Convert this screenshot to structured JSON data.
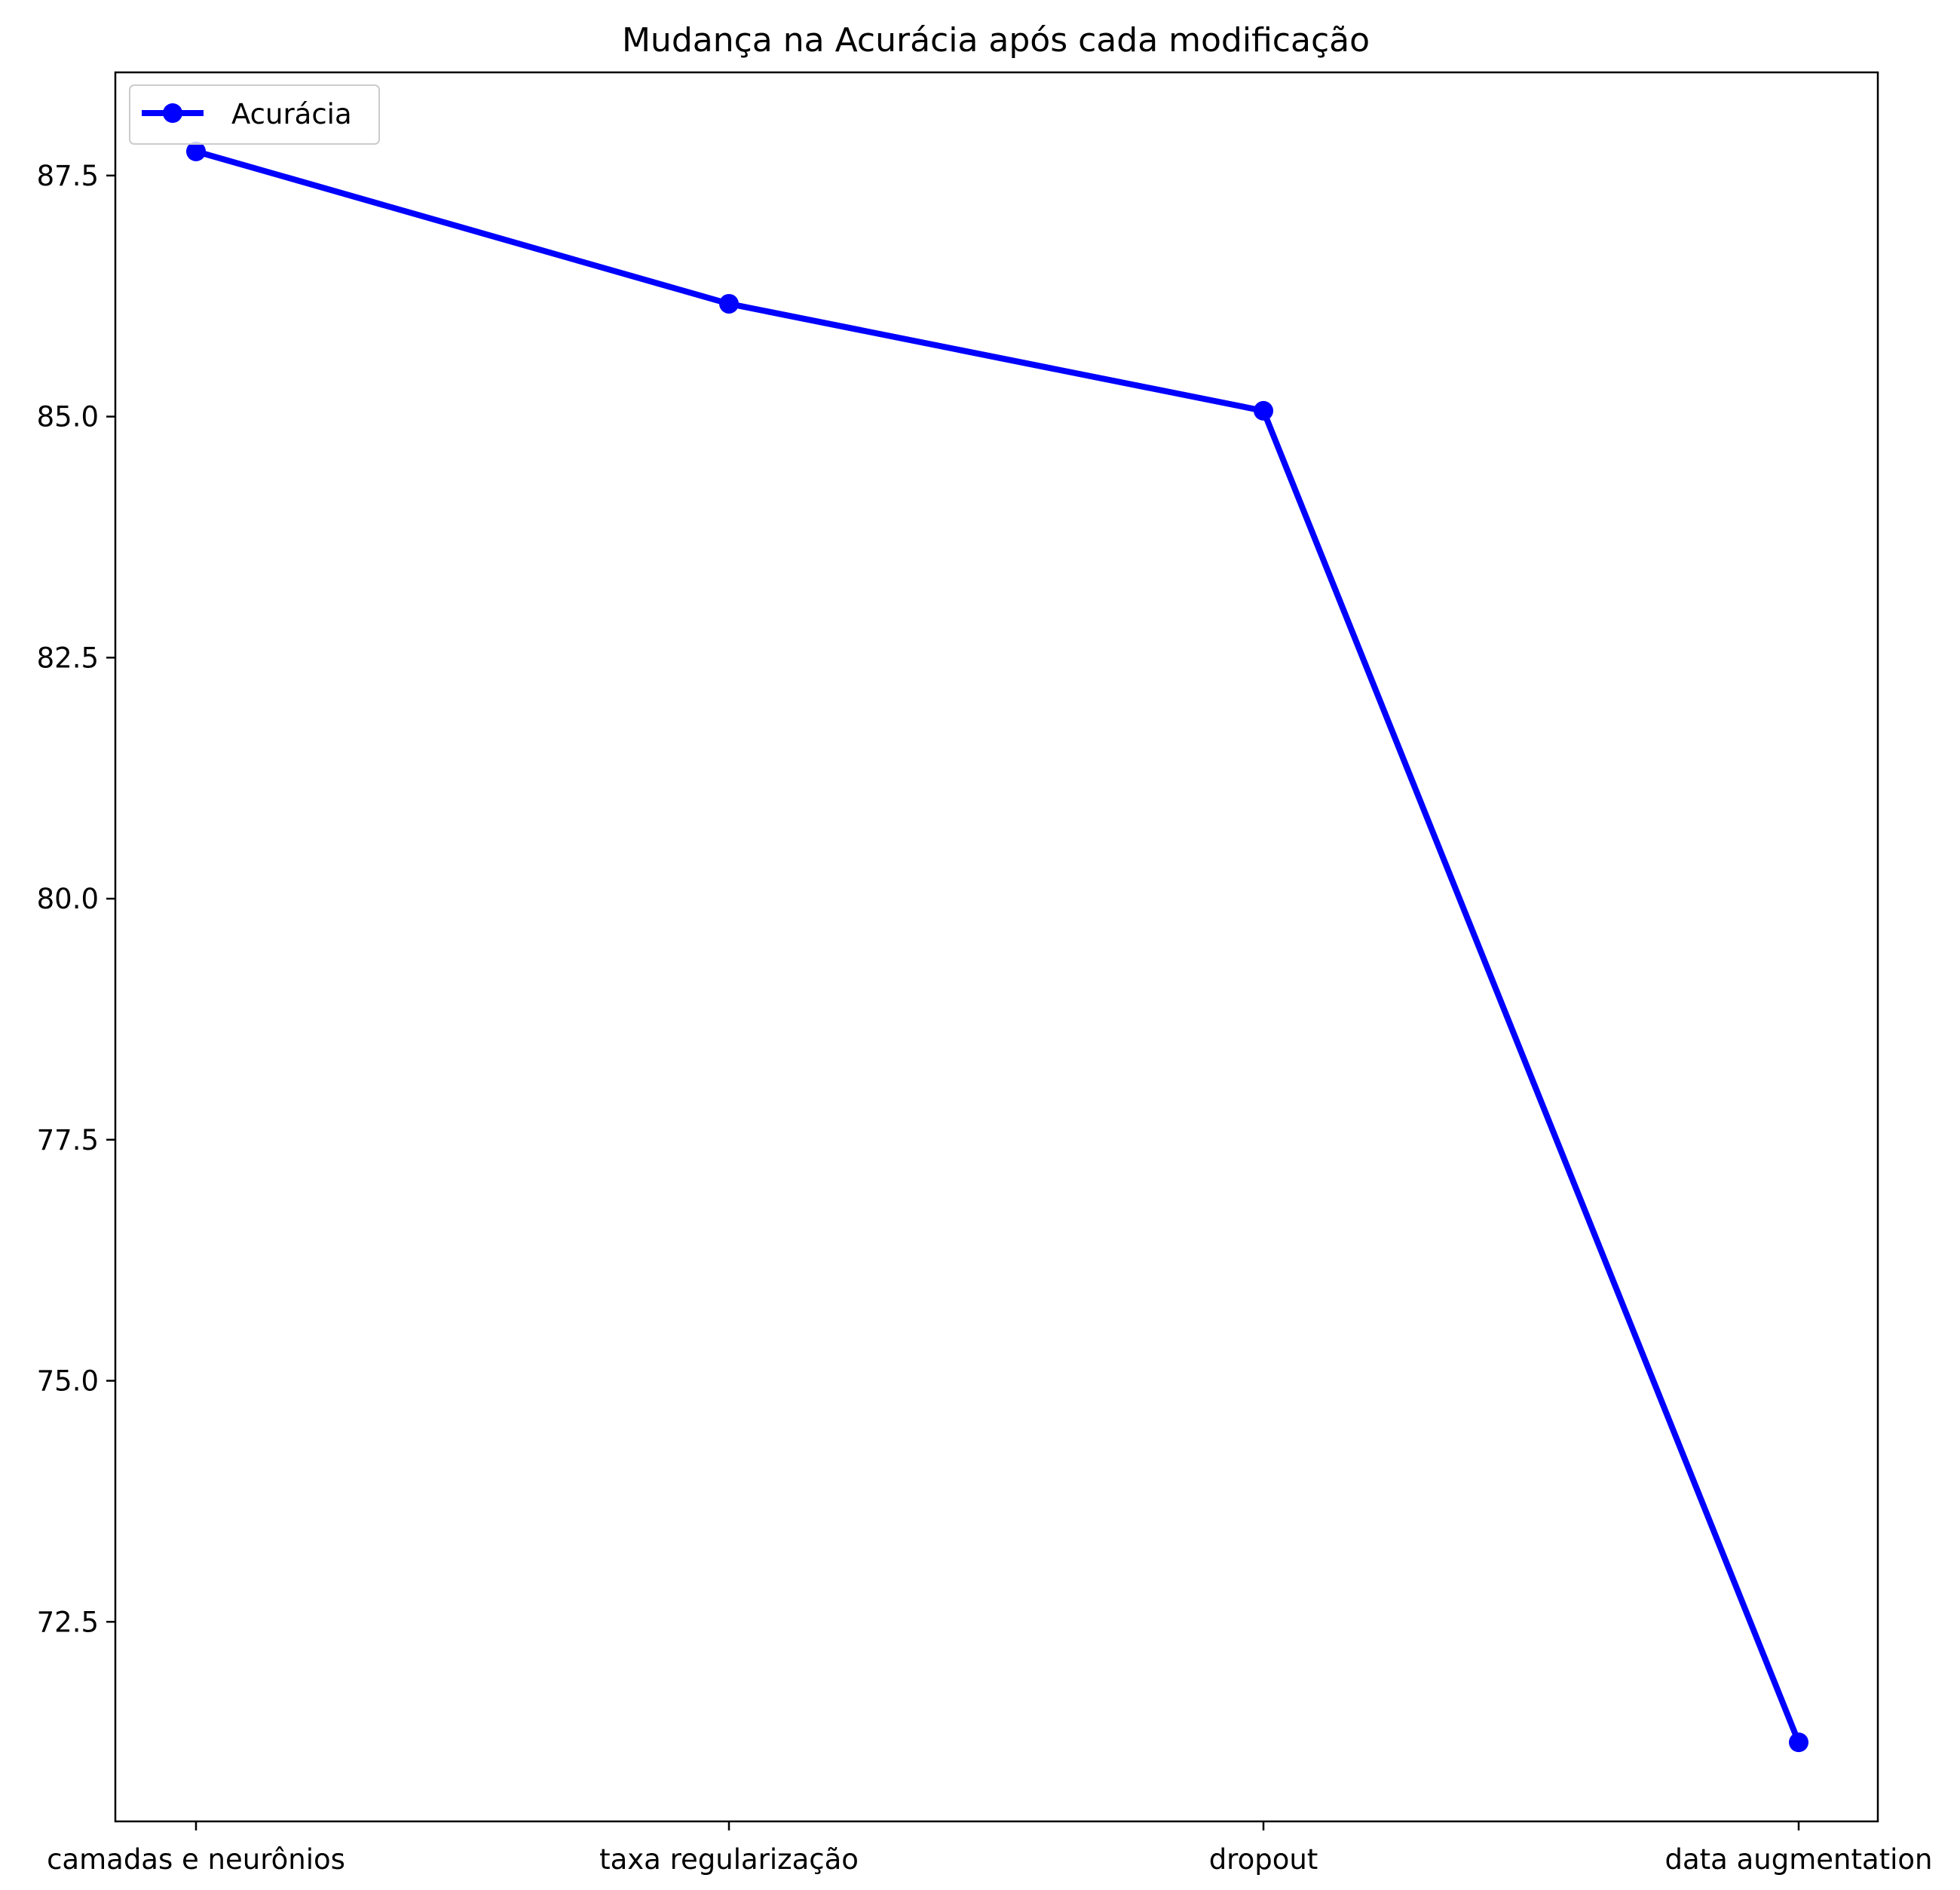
{
  "chart_data": {
    "type": "line",
    "title": "Mudança na Acurácia após cada modificação",
    "xlabel": "",
    "ylabel": "",
    "categories": [
      "camadas e neurônios",
      "taxa regularização",
      "dropout",
      "data augmentation"
    ],
    "series": [
      {
        "name": "Acurácia",
        "values": [
          87.75,
          86.17,
          85.06,
          71.25
        ],
        "color": "#0000ff",
        "marker": "circle"
      }
    ],
    "ylim": [
      70.43,
      88.57
    ],
    "yticks": [
      72.5,
      75.0,
      77.5,
      80.0,
      82.5,
      85.0,
      87.5
    ],
    "ytick_labels": [
      "72.5",
      "75.0",
      "77.5",
      "80.0",
      "82.5",
      "85.0",
      "87.5"
    ],
    "grid": false,
    "legend_position": "upper left"
  }
}
